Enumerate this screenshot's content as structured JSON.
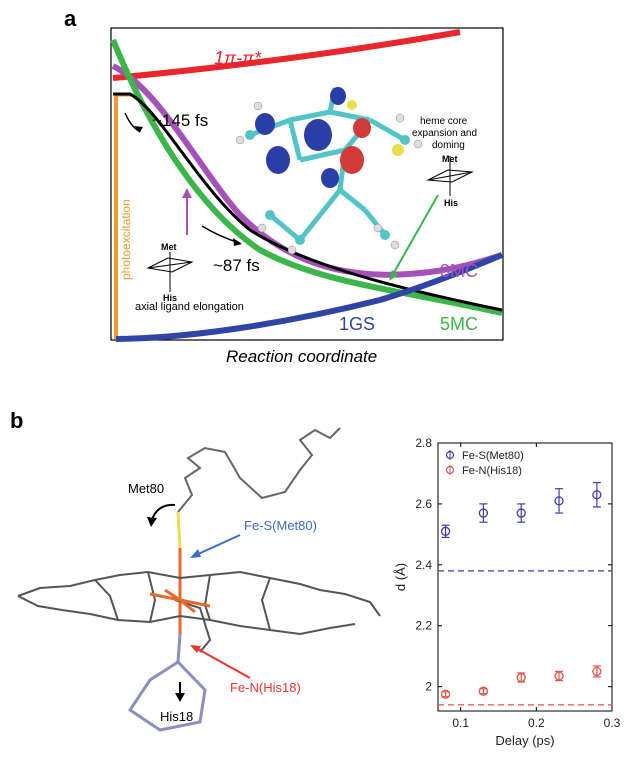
{
  "panel_a": {
    "label": "a",
    "curves": {
      "pi_pi_star": "1π-π*",
      "three_mc": "3MC",
      "five_mc": "5MC",
      "ground_state": "1GS"
    },
    "annotations": {
      "t145": "~145 fs",
      "t87": "~87 fs",
      "photoexcitation": "photoexcitation",
      "axial": "axial ligand elongation",
      "heme_line1": "heme core",
      "heme_line2": "expansion and",
      "heme_line3": "doming",
      "met": "Met",
      "his": "His"
    },
    "xlabel": "Reaction coordinate",
    "colors": {
      "pi": "#e8262c",
      "green": "#3cb54a",
      "purple": "#a552b8",
      "blue": "#2f45a6",
      "orange": "#f39a2e"
    }
  },
  "panel_b": {
    "label": "b",
    "structure_labels": {
      "met80": "Met80",
      "fe_s": "Fe-S(Met80)",
      "fe_n": "Fe-N(His18)",
      "his18": "His18"
    },
    "colors": {
      "fe_s": "#3b6cc6",
      "fe_n": "#e8342a"
    }
  },
  "chart_data": {
    "type": "scatter",
    "xlabel": "Delay (ps)",
    "ylabel": "d (Å)",
    "xlim": [
      0.07,
      0.3
    ],
    "ylim": [
      1.92,
      2.8
    ],
    "xticks": [
      0.1,
      0.2,
      0.3
    ],
    "xtick_labels": [
      "0.1",
      "0.2",
      "0.3"
    ],
    "yticks": [
      2.0,
      2.2,
      2.4,
      2.6,
      2.8
    ],
    "ytick_labels": [
      "2",
      "2.2",
      "2.4",
      "2.6",
      "2.8"
    ],
    "legend_position": "top-left",
    "grid": false,
    "series": [
      {
        "name": "Fe-S(Met80)",
        "color": "#3c3fa8",
        "x": [
          0.08,
          0.13,
          0.18,
          0.23,
          0.28
        ],
        "y": [
          2.51,
          2.57,
          2.57,
          2.61,
          2.63
        ],
        "err": [
          0.02,
          0.03,
          0.03,
          0.04,
          0.04
        ],
        "reference": 2.38
      },
      {
        "name": "Fe-N(His18)",
        "color": "#e2534b",
        "x": [
          0.08,
          0.13,
          0.18,
          0.23,
          0.28
        ],
        "y": [
          1.975,
          1.985,
          2.03,
          2.035,
          2.05
        ],
        "err": [
          0.008,
          0.008,
          0.015,
          0.015,
          0.018
        ],
        "reference": 1.94
      }
    ]
  }
}
